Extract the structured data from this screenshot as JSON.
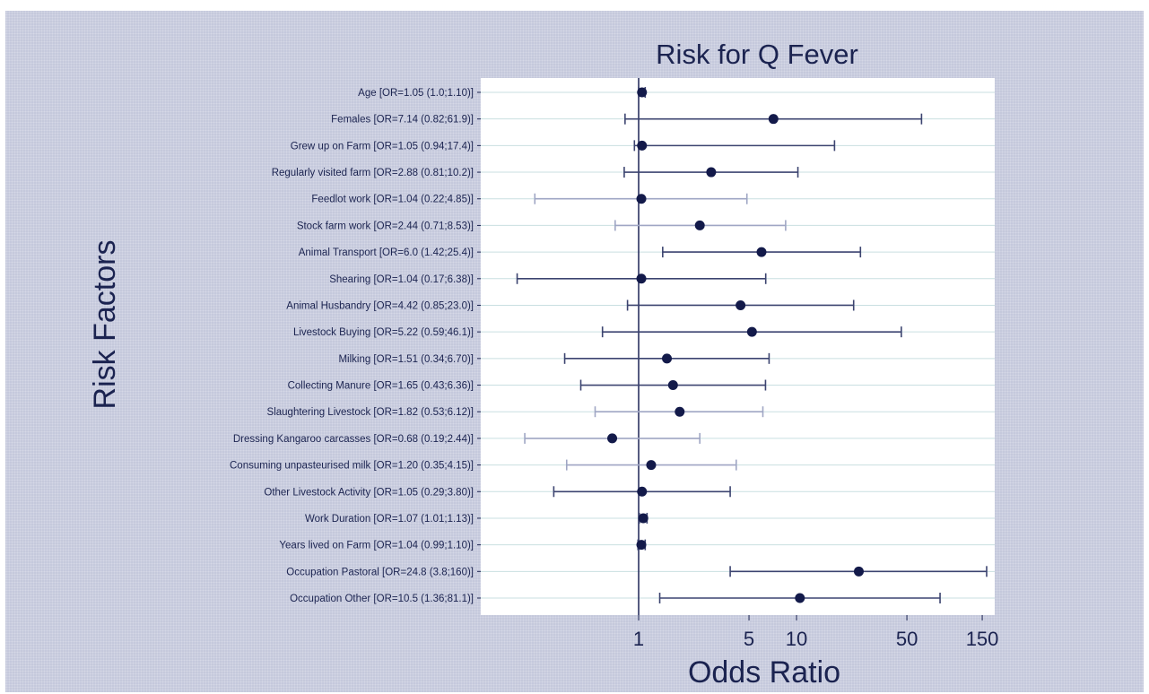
{
  "chart_data": {
    "type": "scatter",
    "subtype": "forest-plot",
    "title": "Risk for Q Fever",
    "xlabel": "Odds Ratio",
    "ylabel": "Risk Factors",
    "x_scale": "log",
    "xlim": [
      0.1,
      180
    ],
    "reference_line": 1,
    "x_ticks": [
      1,
      5,
      10,
      50,
      150
    ],
    "x_tick_labels": [
      "1",
      "5",
      "10",
      "50",
      "150"
    ],
    "grid": true,
    "colors": {
      "point": "#131a4a",
      "ci_dark": "#3c4470",
      "ci_light": "#9fa6c4",
      "grid": "#c9dfe1",
      "background": "#c5c9dc",
      "text": "#1b2350"
    },
    "rows": [
      {
        "label": "Age [OR=1.05 (1.0;1.10)]",
        "or": 1.05,
        "lo": 1.0,
        "hi": 1.1,
        "ci_style": "dark"
      },
      {
        "label": "Females [OR=7.14 (0.82;61.9)]",
        "or": 7.14,
        "lo": 0.82,
        "hi": 61.9,
        "ci_style": "dark"
      },
      {
        "label": "Grew up on Farm [OR=1.05 (0.94;17.4)]",
        "or": 1.05,
        "lo": 0.94,
        "hi": 17.4,
        "ci_style": "dark"
      },
      {
        "label": "Regularly visited farm [OR=2.88 (0.81;10.2)]",
        "or": 2.88,
        "lo": 0.81,
        "hi": 10.2,
        "ci_style": "dark"
      },
      {
        "label": "Feedlot work [OR=1.04 (0.22;4.85)]",
        "or": 1.04,
        "lo": 0.22,
        "hi": 4.85,
        "ci_style": "light"
      },
      {
        "label": "Stock farm work [OR=2.44 (0.71;8.53)]",
        "or": 2.44,
        "lo": 0.71,
        "hi": 8.53,
        "ci_style": "light"
      },
      {
        "label": "Animal Transport [OR=6.0 (1.42;25.4)]",
        "or": 6.0,
        "lo": 1.42,
        "hi": 25.4,
        "ci_style": "dark"
      },
      {
        "label": "Shearing [OR=1.04 (0.17;6.38)]",
        "or": 1.04,
        "lo": 0.17,
        "hi": 6.38,
        "ci_style": "dark"
      },
      {
        "label": "Animal Husbandry [OR=4.42 (0.85;23.0)]",
        "or": 4.42,
        "lo": 0.85,
        "hi": 23.0,
        "ci_style": "dark"
      },
      {
        "label": "Livestock Buying [OR=5.22 (0.59;46.1)]",
        "or": 5.22,
        "lo": 0.59,
        "hi": 46.1,
        "ci_style": "dark"
      },
      {
        "label": "Milking [OR=1.51 (0.34;6.70)]",
        "or": 1.51,
        "lo": 0.34,
        "hi": 6.7,
        "ci_style": "dark"
      },
      {
        "label": "Collecting Manure [OR=1.65 (0.43;6.36)]",
        "or": 1.65,
        "lo": 0.43,
        "hi": 6.36,
        "ci_style": "dark"
      },
      {
        "label": "Slaughtering Livestock [OR=1.82 (0.53;6.12)]",
        "or": 1.82,
        "lo": 0.53,
        "hi": 6.12,
        "ci_style": "light"
      },
      {
        "label": "Dressing Kangaroo carcasses [OR=0.68 (0.19;2.44)]",
        "or": 0.68,
        "lo": 0.19,
        "hi": 2.44,
        "ci_style": "light"
      },
      {
        "label": "Consuming unpasteurised milk [OR=1.20 (0.35;4.15)]",
        "or": 1.2,
        "lo": 0.35,
        "hi": 4.15,
        "ci_style": "light"
      },
      {
        "label": "Other Livestock Activity [OR=1.05 (0.29;3.80)]",
        "or": 1.05,
        "lo": 0.29,
        "hi": 3.8,
        "ci_style": "dark"
      },
      {
        "label": "Work Duration [OR=1.07 (1.01;1.13)]",
        "or": 1.07,
        "lo": 1.01,
        "hi": 1.13,
        "ci_style": "dark"
      },
      {
        "label": "Years lived on Farm [OR=1.04 (0.99;1.10)]",
        "or": 1.04,
        "lo": 0.99,
        "hi": 1.1,
        "ci_style": "dark"
      },
      {
        "label": "Occupation Pastoral [OR=24.8 (3.8;160)]",
        "or": 24.8,
        "lo": 3.8,
        "hi": 160,
        "ci_style": "dark"
      },
      {
        "label": "Occupation Other [OR=10.5 (1.36;81.1)]",
        "or": 10.5,
        "lo": 1.36,
        "hi": 81.1,
        "ci_style": "dark"
      }
    ]
  }
}
